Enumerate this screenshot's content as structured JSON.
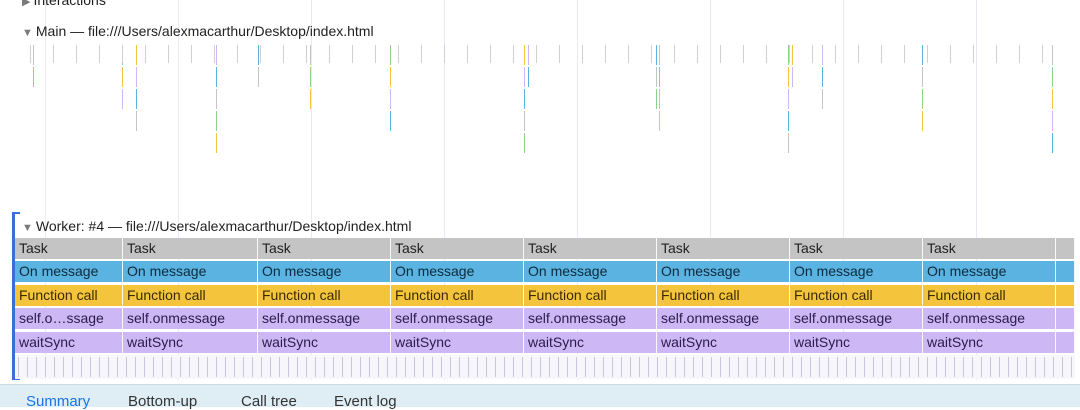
{
  "tracks": {
    "interactions": {
      "label": "Interactions"
    },
    "main": {
      "label": "Main — file:///Users/alexmacarthur/Desktop/index.html"
    },
    "worker": {
      "label": "Worker: #4 — file:///Users/alexmacarthur/Desktop/index.html",
      "rows": {
        "task": [
          "Task",
          "Task",
          "Task",
          "Task",
          "Task",
          "Task",
          "Task",
          "Task"
        ],
        "msg": [
          "On message",
          "On message",
          "On message",
          "On message",
          "On message",
          "On message",
          "On message",
          "On message"
        ],
        "fn": [
          "Function call",
          "Function call",
          "Function call",
          "Function call",
          "Function call",
          "Function call",
          "Function call",
          "Function call"
        ],
        "self": [
          "self.o…ssage",
          "self.onmessage",
          "self.onmessage",
          "self.onmessage",
          "self.onmessage",
          "self.onmessage",
          "self.onmessage",
          "self.onmessage"
        ],
        "wait": [
          "waitSync",
          "waitSync",
          "waitSync",
          "waitSync",
          "waitSync",
          "waitSync",
          "waitSync",
          "waitSync"
        ]
      }
    }
  },
  "bottom_tabs": [
    "Summary",
    "Bottom-up",
    "Call tree",
    "Event log"
  ],
  "colors": {
    "task": "#c4c4c4",
    "on_message": "#5ab3e0",
    "function_call": "#f4c53c",
    "self_onmessage": "#cdb8f5",
    "wait_sync": "#cdb8f5",
    "accent": "#3a6fd8"
  }
}
